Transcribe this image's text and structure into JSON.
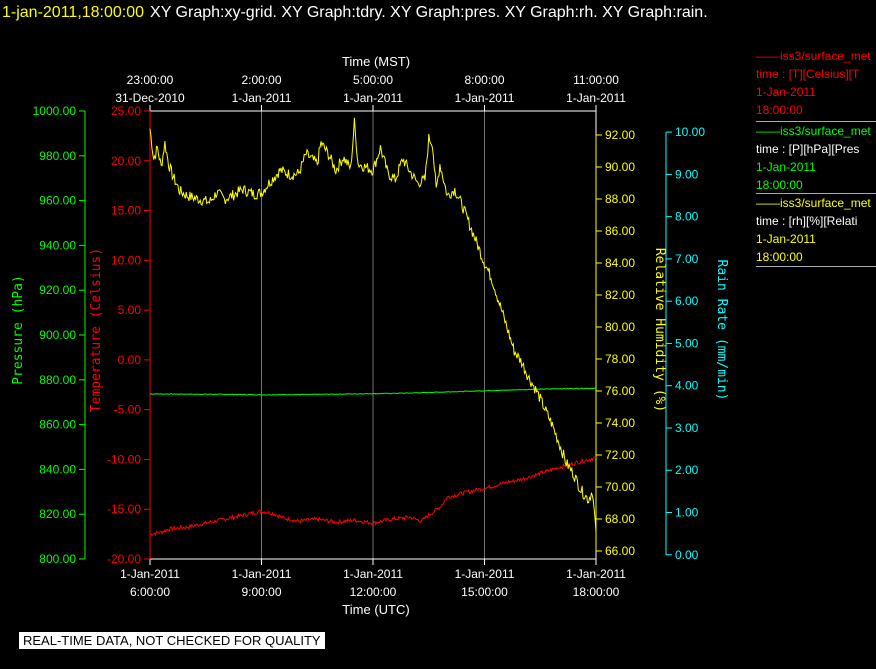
{
  "header": {
    "datetime": "1-jan-2011,18:00:00",
    "graphs": "XY Graph:xy-grid.  XY Graph:tdry.  XY Graph:pres.  XY Graph:rh.  XY Graph:rain."
  },
  "colors": {
    "temperature": "#ff0000",
    "pressure": "#00ff00",
    "humidity": "#ffff00",
    "rain": "#00ffff",
    "grid": "#ffffff",
    "background": "#000000"
  },
  "chart_data": {
    "type": "line",
    "x_unit": "hours after 1-Jan-2011 6:00:00 UTC",
    "x_range": [
      0,
      12
    ],
    "xlabel_bottom": "Time (UTC)",
    "xlabel_top": "Time (MST)",
    "x_ticks_bottom": [
      {
        "t": 0,
        "date": "1-Jan-2011",
        "time": "6:00:00"
      },
      {
        "t": 3,
        "date": "1-Jan-2011",
        "time": "9:00:00"
      },
      {
        "t": 6,
        "date": "1-Jan-2011",
        "time": "12:00:00"
      },
      {
        "t": 9,
        "date": "1-Jan-2011",
        "time": "15:00:00"
      },
      {
        "t": 12,
        "date": "1-Jan-2011",
        "time": "18:00:00"
      }
    ],
    "x_ticks_top": [
      {
        "t": 0,
        "time": "23:00:00",
        "date": "31-Dec-2010"
      },
      {
        "t": 3,
        "time": "2:00:00",
        "date": "1-Jan-2011"
      },
      {
        "t": 6,
        "time": "5:00:00",
        "date": "1-Jan-2011"
      },
      {
        "t": 9,
        "time": "8:00:00",
        "date": "1-Jan-2011"
      },
      {
        "t": 12,
        "time": "11:00:00",
        "date": "1-Jan-2011"
      }
    ],
    "axes": {
      "pressure": {
        "label": "Pressure (hPa)",
        "range": [
          800,
          1000
        ],
        "ticks": [
          "800.00",
          "820.00",
          "840.00",
          "860.00",
          "880.00",
          "900.00",
          "920.00",
          "940.00",
          "960.00",
          "980.00",
          "1000.00"
        ]
      },
      "temperature": {
        "label": "Temperature (Celsius)",
        "range": [
          -20,
          25
        ],
        "ticks": [
          "-20.00",
          "-15.00",
          "-10.00",
          "-5.00",
          "0.00",
          "5.00",
          "10.00",
          "15.00",
          "20.00",
          "25.00"
        ]
      },
      "humidity": {
        "label": "Relative Humidity (%)",
        "range": [
          65.5,
          93.5
        ],
        "ticks": [
          "66.00",
          "68.00",
          "70.00",
          "72.00",
          "74.00",
          "76.00",
          "78.00",
          "80.00",
          "82.00",
          "84.00",
          "86.00",
          "88.00",
          "90.00",
          "92.00"
        ]
      },
      "rain": {
        "label": "Rain Rate (mm/min)",
        "range": [
          -0.1,
          10.5
        ],
        "ticks": [
          "0.00",
          "1.00",
          "2.00",
          "3.00",
          "4.00",
          "5.00",
          "6.00",
          "7.00",
          "8.00",
          "9.00",
          "10.00"
        ]
      }
    },
    "series": [
      {
        "name": "Temperature",
        "axis": "temperature",
        "points": [
          [
            0,
            -17.5
          ],
          [
            0.3,
            -17.3
          ],
          [
            0.5,
            -17.0
          ],
          [
            1.0,
            -16.8
          ],
          [
            1.5,
            -16.4
          ],
          [
            2.0,
            -16.0
          ],
          [
            2.5,
            -15.6
          ],
          [
            3.0,
            -15.2
          ],
          [
            3.3,
            -15.4
          ],
          [
            3.6,
            -15.9
          ],
          [
            4.0,
            -16.2
          ],
          [
            4.5,
            -16.0
          ],
          [
            5.0,
            -16.3
          ],
          [
            5.5,
            -16.1
          ],
          [
            6.0,
            -16.4
          ],
          [
            6.5,
            -16.0
          ],
          [
            7.0,
            -15.8
          ],
          [
            7.3,
            -16.2
          ],
          [
            7.5,
            -15.6
          ],
          [
            7.8,
            -14.8
          ],
          [
            8.0,
            -13.8
          ],
          [
            8.5,
            -13.3
          ],
          [
            9.0,
            -12.9
          ],
          [
            9.5,
            -12.4
          ],
          [
            10.0,
            -12.0
          ],
          [
            10.5,
            -11.4
          ],
          [
            11.0,
            -10.8
          ],
          [
            11.5,
            -10.3
          ],
          [
            12.0,
            -9.8
          ]
        ]
      },
      {
        "name": "Pressure",
        "axis": "pressure",
        "points": [
          [
            0,
            873.7
          ],
          [
            1,
            873.6
          ],
          [
            2,
            873.5
          ],
          [
            3,
            873.3
          ],
          [
            4,
            873.4
          ],
          [
            5,
            873.6
          ],
          [
            6,
            873.8
          ],
          [
            7,
            874.1
          ],
          [
            8,
            874.6
          ],
          [
            9,
            875.1
          ],
          [
            10,
            875.6
          ],
          [
            11,
            876.0
          ],
          [
            12,
            876.2
          ]
        ]
      },
      {
        "name": "Relative Humidity",
        "axis": "humidity",
        "points": [
          [
            0,
            92.4
          ],
          [
            0.1,
            90.5
          ],
          [
            0.2,
            91.2
          ],
          [
            0.3,
            90.0
          ],
          [
            0.4,
            91.5
          ],
          [
            0.5,
            90.2
          ],
          [
            0.6,
            89.5
          ],
          [
            0.8,
            88.5
          ],
          [
            1.0,
            88.2
          ],
          [
            1.3,
            88.0
          ],
          [
            1.6,
            87.8
          ],
          [
            1.8,
            88.4
          ],
          [
            2.0,
            88.0
          ],
          [
            2.2,
            88.2
          ],
          [
            2.5,
            88.6
          ],
          [
            2.8,
            88.3
          ],
          [
            3.0,
            88.4
          ],
          [
            3.2,
            89.0
          ],
          [
            3.5,
            89.8
          ],
          [
            3.8,
            89.5
          ],
          [
            4.0,
            89.6
          ],
          [
            4.2,
            90.8
          ],
          [
            4.5,
            90.2
          ],
          [
            4.6,
            91.5
          ],
          [
            4.8,
            90.8
          ],
          [
            5.0,
            89.8
          ],
          [
            5.2,
            90.6
          ],
          [
            5.4,
            89.9
          ],
          [
            5.5,
            92.8
          ],
          [
            5.6,
            90.2
          ],
          [
            5.8,
            90.0
          ],
          [
            6.0,
            89.8
          ],
          [
            6.2,
            91.2
          ],
          [
            6.4,
            89.6
          ],
          [
            6.6,
            89.2
          ],
          [
            6.8,
            90.5
          ],
          [
            7.0,
            89.7
          ],
          [
            7.2,
            89.0
          ],
          [
            7.4,
            89.2
          ],
          [
            7.5,
            91.8
          ],
          [
            7.6,
            91.5
          ],
          [
            7.7,
            88.5
          ],
          [
            7.8,
            90.2
          ],
          [
            8.0,
            88.2
          ],
          [
            8.2,
            88.6
          ],
          [
            8.4,
            87.6
          ],
          [
            8.6,
            86.4
          ],
          [
            8.8,
            85.2
          ],
          [
            9.0,
            84.0
          ],
          [
            9.2,
            83.0
          ],
          [
            9.4,
            81.5
          ],
          [
            9.6,
            80.0
          ],
          [
            9.8,
            78.5
          ],
          [
            10.0,
            77.8
          ],
          [
            10.2,
            76.8
          ],
          [
            10.4,
            76.0
          ],
          [
            10.6,
            75.0
          ],
          [
            10.8,
            74.0
          ],
          [
            11.0,
            72.8
          ],
          [
            11.2,
            71.5
          ],
          [
            11.4,
            70.8
          ],
          [
            11.6,
            69.8
          ],
          [
            11.8,
            69.2
          ],
          [
            11.9,
            69.8
          ],
          [
            12.0,
            67.2
          ]
        ]
      },
      {
        "name": "Rain Rate",
        "axis": "rain",
        "points": []
      }
    ]
  },
  "legend": [
    {
      "series": "——iss3/surface_met",
      "units": "time : [T][Celsius][T",
      "date": "1-Jan-2011",
      "time": "18:00:00"
    },
    {
      "series": "——iss3/surface_met",
      "units": "time : [P][hPa][Pres",
      "date": "1-Jan-2011",
      "time": "18:00:00"
    },
    {
      "series": "——iss3/surface_met",
      "units": "time : [rh][%][Relati",
      "date": "1-Jan-2011",
      "time": "18:00:00"
    }
  ],
  "footer": {
    "qc_notice": "REAL-TIME DATA, NOT CHECKED FOR QUALITY"
  }
}
